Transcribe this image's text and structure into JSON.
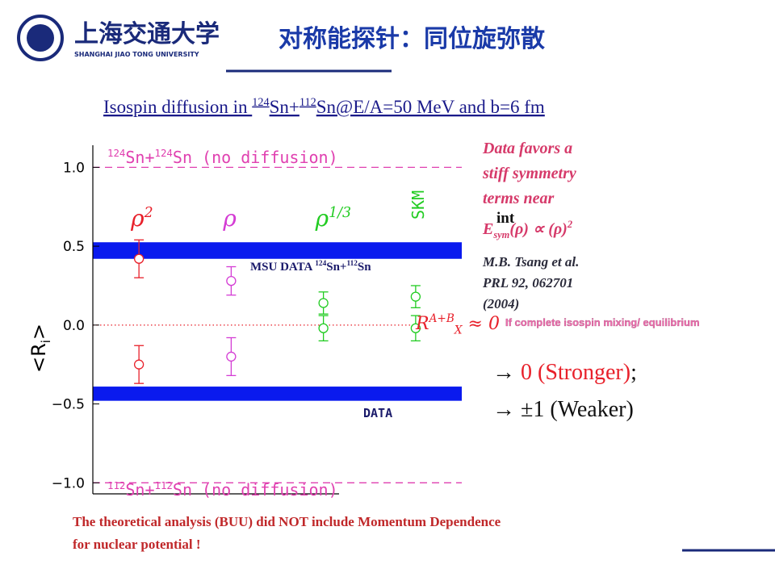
{
  "header": {
    "university": "上海交通大学",
    "university_en": "SHANGHAI JIAO TONG UNIVERSITY",
    "title": "对称能探针：同位旋弥散"
  },
  "subtitle": [
    {
      "text": "Isospin diffusion in "
    },
    {
      "text": "124",
      "sup": true
    },
    {
      "text": "Sn+"
    },
    {
      "text": "112",
      "sup": true
    },
    {
      "text": "Sn@E/A=50 MeV and b=6 fm"
    }
  ],
  "chart_data": {
    "type": "errorbar",
    "y_label": [
      {
        "text": "<R"
      },
      {
        "text": "i",
        "sub": true
      },
      {
        "text": ">"
      }
    ],
    "categories": [
      [
        {
          "text": "ρ"
        },
        {
          "text": "2",
          "sup": true
        }
      ],
      [
        {
          "text": "ρ"
        }
      ],
      [
        {
          "text": "ρ"
        },
        {
          "text": "1/3",
          "sup": true
        }
      ],
      [
        {
          "text": "SKM"
        }
      ]
    ],
    "colors": [
      "#e8202a",
      "#d43cd4",
      "#22cc22",
      "#22cc22"
    ],
    "values": [
      [
        0.42,
        -0.25
      ],
      [
        0.28,
        -0.2
      ],
      [
        0.14,
        -0.02
      ],
      [
        0.18,
        -0.02
      ]
    ],
    "errors": [
      [
        0.12,
        0.12
      ],
      [
        0.09,
        0.12
      ],
      [
        0.07,
        0.08
      ],
      [
        0.07,
        0.08
      ]
    ],
    "ylim": [
      -1.07,
      1.14
    ],
    "yticks": [
      {
        "value": 1.0,
        "label": "1.0"
      },
      {
        "value": 0.5,
        "label": "0.5"
      },
      {
        "value": 0.0,
        "label": "0.0"
      },
      {
        "value": -0.5,
        "label": "−0.5"
      },
      {
        "value": -1.0,
        "label": "−1.0"
      }
    ],
    "bands": [
      {
        "range": [
          0.42,
          0.525
        ],
        "color": "#0a1aee",
        "label": [
          {
            "text": "MSU DATA "
          },
          {
            "text": "124",
            "sup": true
          },
          {
            "text": "Sn+"
          },
          {
            "text": "112",
            "sup": true
          },
          {
            "text": "Sn"
          }
        ]
      },
      {
        "range": [
          -0.48,
          -0.39
        ],
        "color": "#0a1aee",
        "label": [
          {
            "text": "DATA"
          }
        ]
      }
    ],
    "reference_lines": [
      {
        "value": 1.0,
        "color": "#e040b0",
        "style": "dashed",
        "label": [
          {
            "text": "124",
            "sup": true
          },
          {
            "text": "Sn+"
          },
          {
            "text": "124",
            "sup": true
          },
          {
            "text": "Sn (no diffusion)"
          }
        ]
      },
      {
        "value": -1.0,
        "color": "#e040b0",
        "style": "dashed",
        "label": [
          {
            "text": "112",
            "sup": true
          },
          {
            "text": "Sn+"
          },
          {
            "text": "112",
            "sup": true
          },
          {
            "text": "Sn (no diffusion)"
          }
        ]
      },
      {
        "value": 0.0,
        "color": "#e8202a",
        "style": "dotted",
        "label": [
          {
            "text": "R"
          },
          {
            "text": "A+B",
            "sup": true
          },
          {
            "text": "X",
            "sub": true
          },
          {
            "text": " ≈ 0"
          }
        ]
      }
    ]
  },
  "conclusion": [
    "Data favors a",
    "stiff symmetry",
    "terms near"
  ],
  "int_label": "int",
  "formula": [
    {
      "text": "E"
    },
    {
      "text": "sym",
      "sub": true
    },
    {
      "text": "(ρ)  ∝ (ρ)"
    },
    {
      "text": "2",
      "sup": true
    }
  ],
  "reference": [
    "M.B. Tsang et al.",
    "PRL 92, 062701",
    "(2004)"
  ],
  "mixing_note": "If complete isospin mixing/ equilibrium",
  "limits": [
    [
      {
        "text": "→ "
      },
      {
        "text": "0 (Stronger)",
        "red": true
      },
      {
        "text": ";"
      }
    ],
    [
      {
        "text": "→ ±1 (Weaker)"
      }
    ]
  ],
  "footnote": [
    "The theoretical analysis (BUU) did NOT include Momentum Dependence",
    "for nuclear potential !"
  ]
}
